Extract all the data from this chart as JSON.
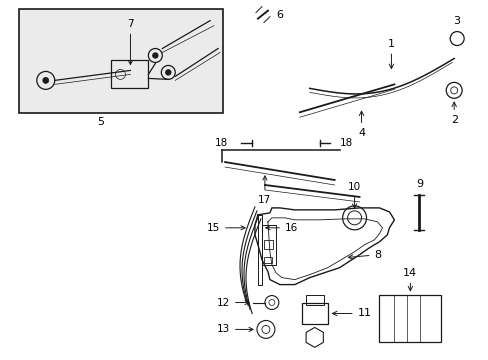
{
  "bg_color": "#ffffff",
  "line_color": "#1a1a1a",
  "box_bg": "#ebebeb",
  "figsize": [
    4.89,
    3.6
  ],
  "dpi": 100
}
